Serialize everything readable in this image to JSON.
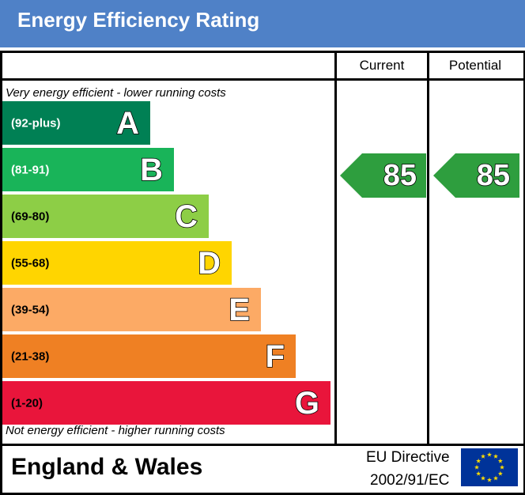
{
  "header": {
    "title": "Energy Efficiency Rating"
  },
  "columns": {
    "current": "Current",
    "potential": "Potential"
  },
  "captions": {
    "top": "Very energy efficient - lower running costs",
    "bottom": "Not energy efficient - higher running costs"
  },
  "bands": [
    {
      "range": "(92-plus)",
      "letter": "A",
      "color": "#008054",
      "range_color": "#ffffff"
    },
    {
      "range": "(81-91)",
      "letter": "B",
      "color": "#19b459",
      "range_color": "#ffffff"
    },
    {
      "range": "(69-80)",
      "letter": "C",
      "color": "#8dce46",
      "range_color": "#000000"
    },
    {
      "range": "(55-68)",
      "letter": "D",
      "color": "#ffd500",
      "range_color": "#000000"
    },
    {
      "range": "(39-54)",
      "letter": "E",
      "color": "#fcaa65",
      "range_color": "#000000"
    },
    {
      "range": "(21-38)",
      "letter": "F",
      "color": "#ef8023",
      "range_color": "#000000"
    },
    {
      "range": "(1-20)",
      "letter": "G",
      "color": "#e9153b",
      "range_color": "#000000"
    }
  ],
  "ratings": {
    "current": "85",
    "potential": "85",
    "color": "#2e9e3e"
  },
  "footer": {
    "region": "England & Wales",
    "directive_line1": "EU Directive",
    "directive_line2": "2002/91/EC",
    "flag_color": "#003399",
    "star_color": "#ffdd00"
  }
}
